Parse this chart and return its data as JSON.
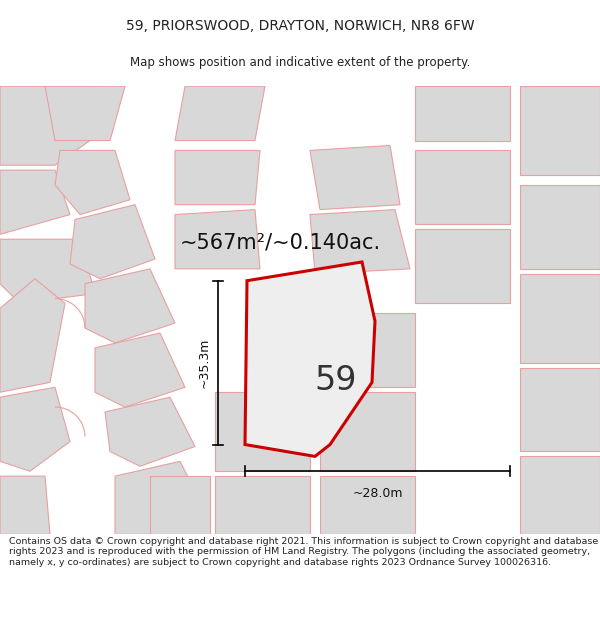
{
  "title_line1": "59, PRIORSWOOD, DRAYTON, NORWICH, NR8 6FW",
  "title_line2": "Map shows position and indicative extent of the property.",
  "area_text": "~567m²/~0.140ac.",
  "number_label": "59",
  "dim_width": "~28.0m",
  "dim_height": "~35.3m",
  "footer_text": "Contains OS data © Crown copyright and database right 2021. This information is subject to Crown copyright and database rights 2023 and is reproduced with the permission of HM Land Registry. The polygons (including the associated geometry, namely x, y co-ordinates) are subject to Crown copyright and database rights 2023 Ordnance Survey 100026316.",
  "map_bg": "#e8e8e8",
  "road_color": "#ffffff",
  "plot_fill": "#d8d8d8",
  "plot_edge": "#e8a0a0",
  "main_fill": "#e8e8e8",
  "main_edge": "#cc0000",
  "title_bg": "#ffffff",
  "footer_bg": "#ffffff",
  "text_color": "#222222",
  "dim_color": "#111111"
}
